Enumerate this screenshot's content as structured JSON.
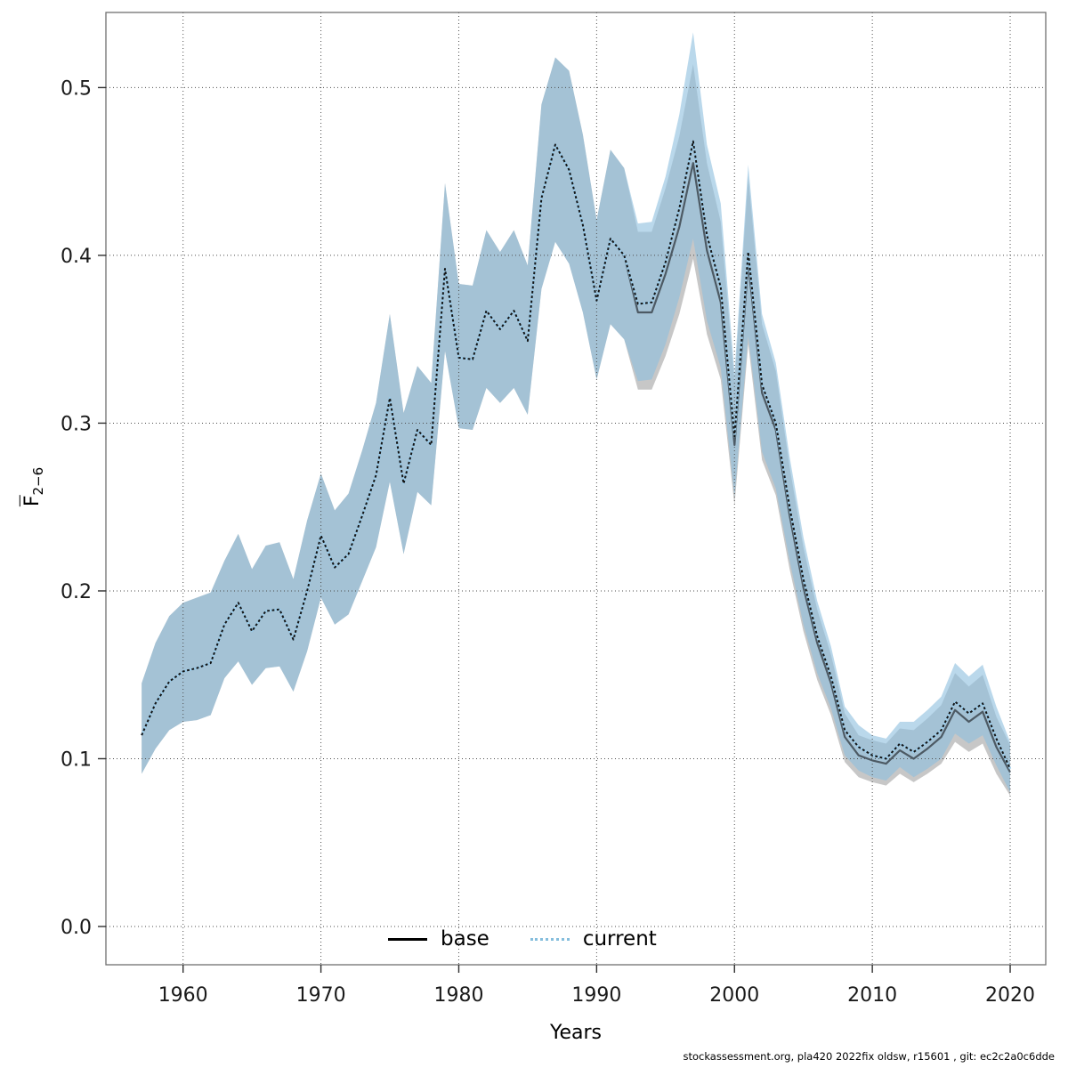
{
  "page": {
    "background": "#ffffff"
  },
  "axes": {
    "x_label": "Years",
    "y_label_main": "F",
    "y_label_sub": "2−6",
    "x_tick_labels": [
      "1960",
      "1970",
      "1980",
      "1990",
      "2000",
      "2010",
      "2020"
    ],
    "y_tick_labels": [
      "0.0",
      "0.1",
      "0.2",
      "0.3",
      "0.4",
      "0.5"
    ]
  },
  "legend": {
    "base_label": "base",
    "current_label": "current"
  },
  "footer": {
    "text": "stockassessment.org, pla420  2022fix  oldsw, r15601 , git: ec2c2a0c6dde"
  },
  "colors": {
    "band_base": "rgba(130,130,130,0.45)",
    "band_current": "rgba(140,190,222,0.60)",
    "line_base": "#4d5a64",
    "line_current_dash": "#141414",
    "line_current_halo": "#9ccbe8",
    "grid": "#4d4d4d",
    "border": "#6f6f6f",
    "tick": "#2f2f2f",
    "tick_label": "#1a1a1a",
    "legend_base": "#000000",
    "legend_current": "#85bedd"
  },
  "chart_data": {
    "type": "line",
    "title": "",
    "xlabel": "Years",
    "ylabel": "F̄ 2−6 (mean fishing mortality ages 2–6)",
    "grid": true,
    "legend_position": "bottom-center-inside",
    "xlim": [
      1954.4,
      2022.6
    ],
    "ylim": [
      -0.021,
      0.545
    ],
    "x_ticks": [
      1960,
      1970,
      1980,
      1990,
      2000,
      2010,
      2020
    ],
    "y_ticks": [
      0.0,
      0.1,
      0.2,
      0.3,
      0.4,
      0.5
    ],
    "years": [
      1957,
      1958,
      1959,
      1960,
      1961,
      1962,
      1963,
      1964,
      1965,
      1966,
      1967,
      1968,
      1969,
      1970,
      1971,
      1972,
      1973,
      1974,
      1975,
      1976,
      1977,
      1978,
      1979,
      1980,
      1981,
      1982,
      1983,
      1984,
      1985,
      1986,
      1987,
      1988,
      1989,
      1990,
      1991,
      1992,
      1993,
      1994,
      1995,
      1996,
      1997,
      1998,
      1999,
      2000,
      2001,
      2002,
      2003,
      2004,
      2005,
      2006,
      2007,
      2008,
      2009,
      2010,
      2011,
      2012,
      2013,
      2014,
      2015,
      2016,
      2017,
      2018,
      2019,
      2020
    ],
    "series": [
      {
        "name": "base",
        "line_style": "solid",
        "values": [
          0.114,
          0.133,
          0.146,
          0.152,
          0.154,
          0.157,
          0.18,
          0.193,
          0.176,
          0.188,
          0.189,
          0.171,
          0.2,
          0.233,
          0.214,
          0.222,
          0.245,
          0.269,
          0.315,
          0.264,
          0.296,
          0.287,
          0.392,
          0.339,
          0.338,
          0.367,
          0.356,
          0.367,
          0.349,
          0.434,
          0.466,
          0.451,
          0.418,
          0.373,
          0.41,
          0.4,
          0.366,
          0.366,
          0.389,
          0.417,
          0.455,
          0.403,
          0.372,
          0.287,
          0.396,
          0.318,
          0.296,
          0.245,
          0.202,
          0.169,
          0.145,
          0.113,
          0.102,
          0.099,
          0.097,
          0.105,
          0.1,
          0.106,
          0.113,
          0.129,
          0.122,
          0.128,
          0.107,
          0.092
        ],
        "ci_upper": [
          0.145,
          0.169,
          0.185,
          0.193,
          0.196,
          0.199,
          0.218,
          0.234,
          0.213,
          0.227,
          0.229,
          0.207,
          0.242,
          0.27,
          0.248,
          0.258,
          0.284,
          0.312,
          0.365,
          0.306,
          0.334,
          0.324,
          0.443,
          0.383,
          0.382,
          0.415,
          0.402,
          0.415,
          0.394,
          0.49,
          0.518,
          0.51,
          0.472,
          0.421,
          0.463,
          0.452,
          0.414,
          0.414,
          0.44,
          0.471,
          0.514,
          0.455,
          0.42,
          0.324,
          0.447,
          0.359,
          0.331,
          0.274,
          0.226,
          0.189,
          0.162,
          0.127,
          0.114,
          0.111,
          0.109,
          0.118,
          0.117,
          0.124,
          0.132,
          0.151,
          0.143,
          0.15,
          0.125,
          0.108
        ],
        "ci_lower": [
          0.091,
          0.106,
          0.117,
          0.122,
          0.123,
          0.126,
          0.148,
          0.158,
          0.144,
          0.154,
          0.155,
          0.14,
          0.164,
          0.196,
          0.18,
          0.186,
          0.206,
          0.226,
          0.265,
          0.222,
          0.259,
          0.251,
          0.343,
          0.297,
          0.296,
          0.321,
          0.312,
          0.321,
          0.305,
          0.38,
          0.408,
          0.395,
          0.366,
          0.326,
          0.359,
          0.35,
          0.32,
          0.32,
          0.34,
          0.365,
          0.398,
          0.353,
          0.326,
          0.251,
          0.347,
          0.278,
          0.257,
          0.213,
          0.176,
          0.147,
          0.126,
          0.098,
          0.089,
          0.086,
          0.084,
          0.091,
          0.086,
          0.091,
          0.097,
          0.11,
          0.104,
          0.109,
          0.091,
          0.078
        ]
      },
      {
        "name": "current",
        "line_style": "dotted",
        "values": [
          0.114,
          0.133,
          0.146,
          0.152,
          0.154,
          0.157,
          0.18,
          0.193,
          0.176,
          0.188,
          0.189,
          0.171,
          0.2,
          0.233,
          0.214,
          0.222,
          0.245,
          0.269,
          0.315,
          0.264,
          0.296,
          0.287,
          0.392,
          0.339,
          0.338,
          0.367,
          0.356,
          0.367,
          0.349,
          0.434,
          0.466,
          0.451,
          0.418,
          0.373,
          0.41,
          0.4,
          0.371,
          0.372,
          0.396,
          0.428,
          0.468,
          0.412,
          0.381,
          0.292,
          0.402,
          0.323,
          0.3,
          0.25,
          0.207,
          0.173,
          0.149,
          0.117,
          0.107,
          0.102,
          0.1,
          0.109,
          0.104,
          0.11,
          0.117,
          0.134,
          0.127,
          0.133,
          0.112,
          0.094
        ],
        "ci_upper": [
          0.145,
          0.169,
          0.185,
          0.193,
          0.196,
          0.199,
          0.218,
          0.234,
          0.213,
          0.227,
          0.229,
          0.207,
          0.242,
          0.27,
          0.248,
          0.258,
          0.284,
          0.312,
          0.365,
          0.306,
          0.334,
          0.324,
          0.443,
          0.383,
          0.382,
          0.415,
          0.402,
          0.415,
          0.394,
          0.49,
          0.518,
          0.51,
          0.472,
          0.421,
          0.463,
          0.452,
          0.419,
          0.42,
          0.447,
          0.484,
          0.533,
          0.466,
          0.431,
          0.33,
          0.454,
          0.365,
          0.336,
          0.28,
          0.232,
          0.194,
          0.167,
          0.131,
          0.12,
          0.114,
          0.112,
          0.122,
          0.122,
          0.129,
          0.137,
          0.157,
          0.149,
          0.156,
          0.131,
          0.11
        ],
        "ci_lower": [
          0.091,
          0.106,
          0.117,
          0.122,
          0.123,
          0.126,
          0.148,
          0.158,
          0.144,
          0.154,
          0.155,
          0.14,
          0.164,
          0.196,
          0.18,
          0.186,
          0.206,
          0.226,
          0.265,
          0.222,
          0.259,
          0.251,
          0.343,
          0.297,
          0.296,
          0.321,
          0.312,
          0.321,
          0.305,
          0.38,
          0.408,
          0.395,
          0.366,
          0.326,
          0.359,
          0.35,
          0.325,
          0.326,
          0.347,
          0.375,
          0.41,
          0.361,
          0.333,
          0.256,
          0.352,
          0.283,
          0.261,
          0.218,
          0.18,
          0.151,
          0.13,
          0.102,
          0.093,
          0.089,
          0.087,
          0.095,
          0.089,
          0.094,
          0.1,
          0.115,
          0.109,
          0.114,
          0.096,
          0.08
        ]
      }
    ]
  }
}
